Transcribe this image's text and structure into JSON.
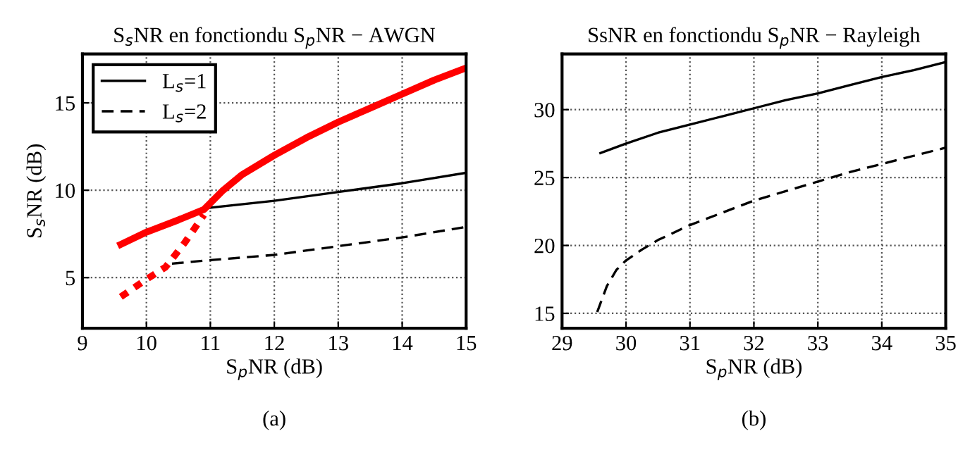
{
  "chart_data": [
    {
      "type": "line",
      "title": "S$_{s}$NR en fonctiondu S$_{p}$NR − AWGN",
      "xlabel": "S$_{p}$NR (dB)",
      "ylabel": "S$_{s}$NR (dB)",
      "annotations": [
        "(a)"
      ],
      "xlim": [
        9,
        15
      ],
      "ylim": [
        2.1,
        17.8
      ],
      "xticks": [
        9,
        10,
        11,
        12,
        13,
        14,
        15
      ],
      "yticks": [
        5,
        10,
        15
      ],
      "grid": true,
      "legend": "top left",
      "series": [
        {
          "name": "L$_{s}$=1",
          "color": "#000000",
          "line_style": "solid",
          "x": [
            11,
            12,
            13,
            14,
            15
          ],
          "values": [
            9.0,
            9.4,
            9.9,
            10.4,
            11.0
          ]
        },
        {
          "name": "L$_{s}$=2",
          "color": "#000000",
          "line_style": "dashed",
          "x": [
            10.4,
            11,
            12,
            13,
            14,
            15
          ],
          "values": [
            5.8,
            6.0,
            6.3,
            6.8,
            7.3,
            7.9
          ]
        },
        {
          "color": "#ff0000",
          "line_style": "solid",
          "x": [
            9.6,
            10,
            10.5,
            10.9,
            11.2,
            11.5,
            12,
            12.5,
            13,
            13.5,
            14,
            14.5,
            15
          ],
          "values": [
            6.9,
            7.6,
            8.3,
            8.9,
            10.0,
            10.9,
            12.0,
            13.0,
            13.9,
            14.7,
            15.5,
            16.3,
            17.0
          ]
        },
        {
          "color": "#ff0000",
          "line_style": "dotted",
          "x": [
            9.6,
            10,
            10.3,
            10.6,
            10.9
          ],
          "values": [
            3.9,
            4.9,
            5.6,
            7.0,
            8.6
          ]
        }
      ]
    },
    {
      "type": "line",
      "title": "SsNR en fonctiondu S$_{p}$NR − Rayleigh",
      "xlabel": "S$_{p}$NR (dB)",
      "annotations": [
        "(b)"
      ],
      "xlim": [
        29,
        35
      ],
      "ylim": [
        13.9,
        34.1
      ],
      "xticks": [
        29,
        30,
        31,
        32,
        33,
        34,
        35
      ],
      "yticks": [
        15,
        20,
        25,
        30
      ],
      "grid": true,
      "series": [
        {
          "color": "#000000",
          "line_style": "solid",
          "x": [
            29.6,
            30,
            30.5,
            31,
            31.5,
            32,
            32.5,
            33,
            33.5,
            34,
            34.5,
            35
          ],
          "values": [
            26.8,
            27.5,
            28.3,
            28.9,
            29.5,
            30.1,
            30.7,
            31.2,
            31.8,
            32.4,
            32.9,
            33.5
          ]
        },
        {
          "color": "#000000",
          "line_style": "dashed",
          "x": [
            29.55,
            29.7,
            29.85,
            30,
            30.25,
            30.5,
            31,
            31.5,
            32,
            32.5,
            33,
            33.5,
            34,
            34.5,
            35
          ],
          "values": [
            15.1,
            17.0,
            18.2,
            18.9,
            19.7,
            20.4,
            21.5,
            22.4,
            23.3,
            24.0,
            24.7,
            25.4,
            26.0,
            26.6,
            27.2
          ]
        }
      ]
    }
  ]
}
